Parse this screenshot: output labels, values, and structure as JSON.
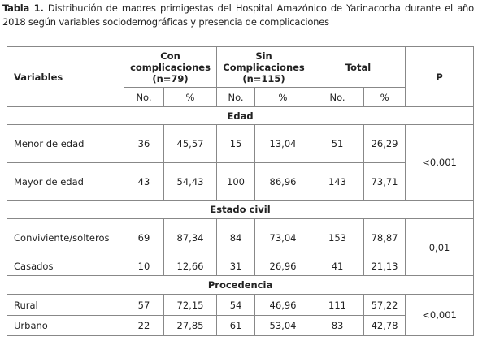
{
  "caption": {
    "label": "Tabla 1.",
    "text": "Distribución de madres primigestas del Hospital Amazónico de Yarinacocha durante el año 2018 según variables sociodemográficas  y presencia  de complicaciones"
  },
  "table": {
    "header": {
      "variables": "Variables",
      "groups": [
        "Con complicaciones (n=79)",
        "Sin Complicaciones (n=115)",
        "Total"
      ],
      "p": "P",
      "sub": [
        "No.",
        "%",
        "No.",
        "%",
        "No.",
        "%"
      ]
    },
    "sections": [
      {
        "title": "Edad",
        "p": "<0,001",
        "rows": [
          [
            "Menor de edad",
            "36",
            "45,57",
            "15",
            "13,04",
            "51",
            "26,29"
          ],
          [
            "Mayor de edad",
            "43",
            "54,43",
            "100",
            "86,96",
            "143",
            "73,71"
          ]
        ]
      },
      {
        "title": "Estado civil",
        "p": "0,01",
        "rows": [
          [
            "Conviviente/solteros",
            "69",
            "87,34",
            "84",
            "73,04",
            "153",
            "78,87"
          ],
          [
            "Casados",
            "10",
            "12,66",
            "31",
            "26,96",
            "41",
            "21,13"
          ]
        ]
      },
      {
        "title": "Procedencia",
        "p": "<0,001",
        "rows": [
          [
            "Rural",
            "57",
            "72,15",
            "54",
            "46,96",
            "111",
            "57,22"
          ],
          [
            "Urbano",
            "22",
            "27,85",
            "61",
            "53,04",
            "83",
            "42,78"
          ]
        ]
      }
    ]
  }
}
